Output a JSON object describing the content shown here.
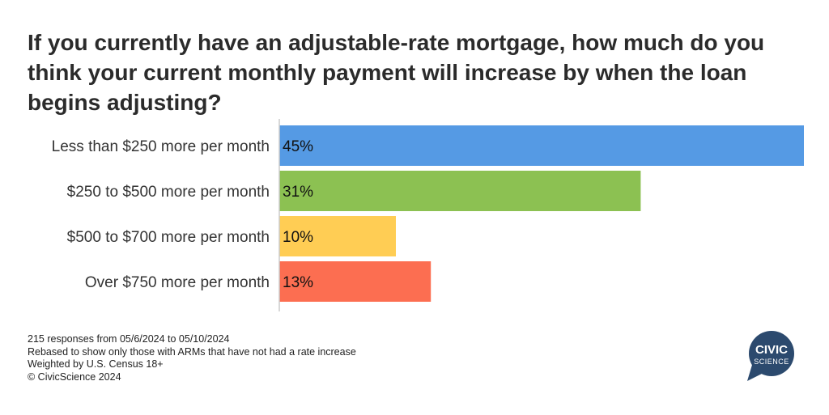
{
  "title": "If you currently have an adjustable-rate mortgage, how much do you think your current monthly payment will increase by when the loan begins adjusting?",
  "chart_data": {
    "type": "bar",
    "orientation": "horizontal",
    "categories": [
      "Less than $250 more per month",
      "$250 to $500 more per month",
      "$500 to $700 more per month",
      "Over $750 more per month"
    ],
    "values": [
      45,
      31,
      10,
      13
    ],
    "value_labels": [
      "45%",
      "31%",
      "10%",
      "13%"
    ],
    "colors": [
      "#559ae4",
      "#8cc152",
      "#ffcd54",
      "#fc6e51"
    ],
    "xlim": [
      0,
      45
    ],
    "grid": false,
    "legend": "none"
  },
  "notes": [
    "215 responses from 05/6/2024 to 05/10/2024",
    "Rebased to show only those with ARMs that have not had a rate increase",
    "Weighted by U.S. Census 18+",
    "© CivicScience 2024"
  ],
  "logo": {
    "line1": "CIVIC",
    "line2": "SCIENCE",
    "color": "#2c4a6e"
  }
}
